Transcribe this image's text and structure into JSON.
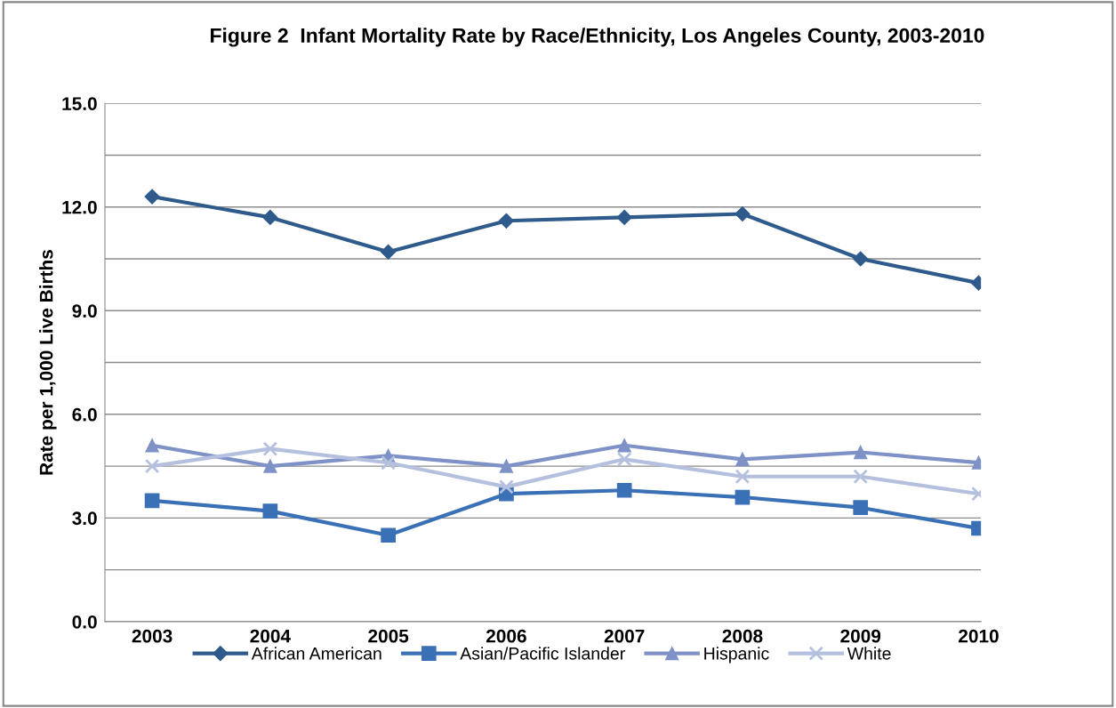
{
  "chart_data": {
    "type": "line",
    "title": "Figure 2  Infant Mortality Rate by Race/Ethnicity, Los Angeles County, 2003-2010",
    "ylabel": "Rate per 1,000 Live Births",
    "categories": [
      "2003",
      "2004",
      "2005",
      "2006",
      "2007",
      "2008",
      "2009",
      "2010"
    ],
    "series": [
      {
        "name": "African American",
        "color": "#2e5a8c",
        "marker": "diamond",
        "values": [
          12.3,
          11.7,
          10.7,
          11.6,
          11.7,
          11.8,
          10.5,
          9.8
        ]
      },
      {
        "name": "Asian/Pacific Islander",
        "color": "#3a70b5",
        "marker": "square",
        "values": [
          3.5,
          3.2,
          2.5,
          3.7,
          3.8,
          3.6,
          3.3,
          2.7
        ]
      },
      {
        "name": "Hispanic",
        "color": "#7f92c8",
        "marker": "triangle",
        "values": [
          5.1,
          4.5,
          4.8,
          4.5,
          5.1,
          4.7,
          4.9,
          4.6
        ]
      },
      {
        "name": "White",
        "color": "#b4c0de",
        "marker": "cross",
        "values": [
          4.5,
          5.0,
          4.6,
          3.9,
          4.7,
          4.2,
          4.2,
          3.7
        ]
      }
    ],
    "ylim": [
      0,
      15
    ],
    "yticks": [
      {
        "value": 0,
        "label": "0.0"
      },
      {
        "value": 1.5,
        "label": null
      },
      {
        "value": 3,
        "label": "3.0"
      },
      {
        "value": 4.5,
        "label": null
      },
      {
        "value": 6,
        "label": "6.0"
      },
      {
        "value": 7.5,
        "label": null
      },
      {
        "value": 9,
        "label": "9.0"
      },
      {
        "value": 10.5,
        "label": null
      },
      {
        "value": 12,
        "label": "12.0"
      },
      {
        "value": 13.5,
        "label": null
      },
      {
        "value": 15,
        "label": "15.0"
      }
    ],
    "grid": "y",
    "legend": "bottom",
    "line_style": "solid"
  }
}
